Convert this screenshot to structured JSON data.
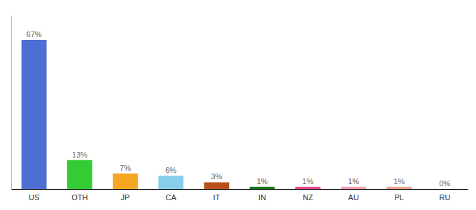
{
  "chart_data": {
    "type": "bar",
    "categories": [
      "US",
      "OTH",
      "JP",
      "CA",
      "IT",
      "IN",
      "NZ",
      "AU",
      "PL",
      "RU"
    ],
    "values": [
      67,
      13,
      7,
      6,
      3,
      1,
      1,
      1,
      1,
      0
    ],
    "value_labels": [
      "67%",
      "13%",
      "7%",
      "6%",
      "3%",
      "1%",
      "1%",
      "1%",
      "1%",
      "0%"
    ],
    "colors": [
      "#4d6fd4",
      "#33cc33",
      "#f5a623",
      "#87ceeb",
      "#b84f1a",
      "#1a7a1a",
      "#e8448a",
      "#f0a0b0",
      "#e8a090",
      "#e85858"
    ],
    "ylim": [
      0,
      78
    ],
    "data_labels": true,
    "tick_labels": "x",
    "grid": false
  }
}
